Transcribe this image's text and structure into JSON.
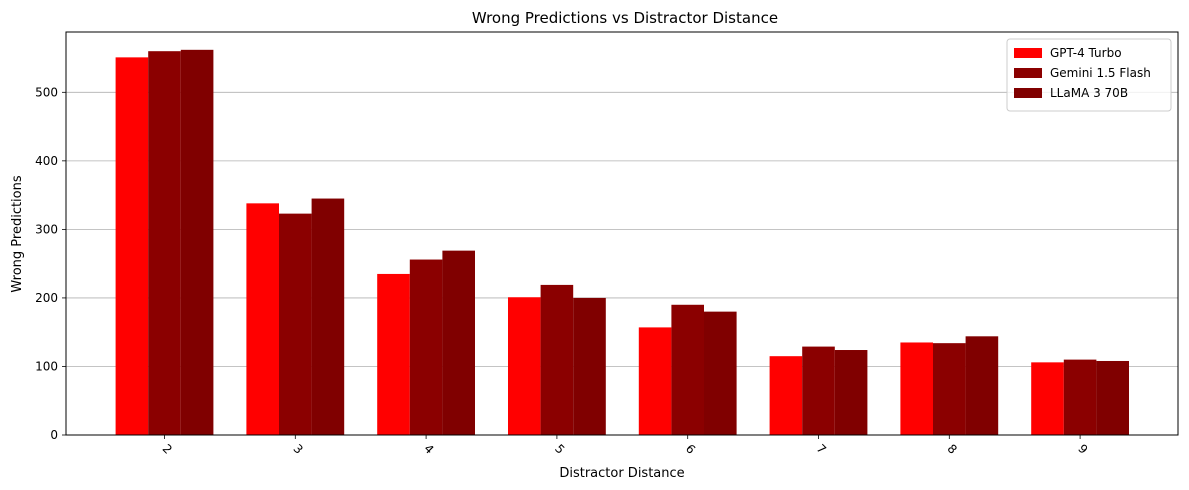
{
  "chart_data": {
    "type": "bar",
    "title": "Wrong Predictions vs Distractor Distance",
    "xlabel": "Distractor Distance",
    "ylabel": "Wrong Predictions",
    "categories": [
      "2",
      "3",
      "4",
      "5",
      "6",
      "7",
      "8",
      "9"
    ],
    "ylim": [
      0,
      588
    ],
    "yticks": [
      0,
      100,
      200,
      300,
      400,
      500
    ],
    "grid": "y",
    "legend_position": "top-right",
    "series": [
      {
        "name": "GPT-4 Turbo",
        "color": "#ff0000",
        "values": [
          551,
          338,
          235,
          201,
          157,
          115,
          135,
          106
        ]
      },
      {
        "name": "Gemini 1.5 Flash",
        "color": "#8b0000",
        "values": [
          560,
          323,
          256,
          219,
          190,
          129,
          134,
          110
        ]
      },
      {
        "name": "LLaMA 3 70B",
        "color": "#800000",
        "values": [
          562,
          345,
          269,
          200,
          180,
          124,
          144,
          108
        ]
      }
    ]
  }
}
